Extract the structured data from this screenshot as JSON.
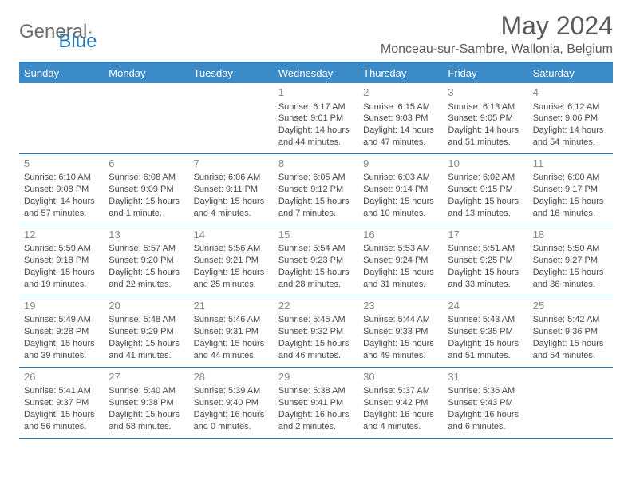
{
  "logo": {
    "text1": "General",
    "text2": "Blue"
  },
  "title": "May 2024",
  "location": "Monceau-sur-Sambre, Wallonia, Belgium",
  "colors": {
    "accent": "#2a7ab8",
    "header_bg": "#3b8bc9",
    "header_text": "#ffffff",
    "body_text": "#4a4a4a",
    "muted": "#888888"
  },
  "day_names": [
    "Sunday",
    "Monday",
    "Tuesday",
    "Wednesday",
    "Thursday",
    "Friday",
    "Saturday"
  ],
  "weeks": [
    [
      {
        "num": "",
        "sunrise": "",
        "sunset": "",
        "daylight": ""
      },
      {
        "num": "",
        "sunrise": "",
        "sunset": "",
        "daylight": ""
      },
      {
        "num": "",
        "sunrise": "",
        "sunset": "",
        "daylight": ""
      },
      {
        "num": "1",
        "sunrise": "Sunrise: 6:17 AM",
        "sunset": "Sunset: 9:01 PM",
        "daylight": "Daylight: 14 hours and 44 minutes."
      },
      {
        "num": "2",
        "sunrise": "Sunrise: 6:15 AM",
        "sunset": "Sunset: 9:03 PM",
        "daylight": "Daylight: 14 hours and 47 minutes."
      },
      {
        "num": "3",
        "sunrise": "Sunrise: 6:13 AM",
        "sunset": "Sunset: 9:05 PM",
        "daylight": "Daylight: 14 hours and 51 minutes."
      },
      {
        "num": "4",
        "sunrise": "Sunrise: 6:12 AM",
        "sunset": "Sunset: 9:06 PM",
        "daylight": "Daylight: 14 hours and 54 minutes."
      }
    ],
    [
      {
        "num": "5",
        "sunrise": "Sunrise: 6:10 AM",
        "sunset": "Sunset: 9:08 PM",
        "daylight": "Daylight: 14 hours and 57 minutes."
      },
      {
        "num": "6",
        "sunrise": "Sunrise: 6:08 AM",
        "sunset": "Sunset: 9:09 PM",
        "daylight": "Daylight: 15 hours and 1 minute."
      },
      {
        "num": "7",
        "sunrise": "Sunrise: 6:06 AM",
        "sunset": "Sunset: 9:11 PM",
        "daylight": "Daylight: 15 hours and 4 minutes."
      },
      {
        "num": "8",
        "sunrise": "Sunrise: 6:05 AM",
        "sunset": "Sunset: 9:12 PM",
        "daylight": "Daylight: 15 hours and 7 minutes."
      },
      {
        "num": "9",
        "sunrise": "Sunrise: 6:03 AM",
        "sunset": "Sunset: 9:14 PM",
        "daylight": "Daylight: 15 hours and 10 minutes."
      },
      {
        "num": "10",
        "sunrise": "Sunrise: 6:02 AM",
        "sunset": "Sunset: 9:15 PM",
        "daylight": "Daylight: 15 hours and 13 minutes."
      },
      {
        "num": "11",
        "sunrise": "Sunrise: 6:00 AM",
        "sunset": "Sunset: 9:17 PM",
        "daylight": "Daylight: 15 hours and 16 minutes."
      }
    ],
    [
      {
        "num": "12",
        "sunrise": "Sunrise: 5:59 AM",
        "sunset": "Sunset: 9:18 PM",
        "daylight": "Daylight: 15 hours and 19 minutes."
      },
      {
        "num": "13",
        "sunrise": "Sunrise: 5:57 AM",
        "sunset": "Sunset: 9:20 PM",
        "daylight": "Daylight: 15 hours and 22 minutes."
      },
      {
        "num": "14",
        "sunrise": "Sunrise: 5:56 AM",
        "sunset": "Sunset: 9:21 PM",
        "daylight": "Daylight: 15 hours and 25 minutes."
      },
      {
        "num": "15",
        "sunrise": "Sunrise: 5:54 AM",
        "sunset": "Sunset: 9:23 PM",
        "daylight": "Daylight: 15 hours and 28 minutes."
      },
      {
        "num": "16",
        "sunrise": "Sunrise: 5:53 AM",
        "sunset": "Sunset: 9:24 PM",
        "daylight": "Daylight: 15 hours and 31 minutes."
      },
      {
        "num": "17",
        "sunrise": "Sunrise: 5:51 AM",
        "sunset": "Sunset: 9:25 PM",
        "daylight": "Daylight: 15 hours and 33 minutes."
      },
      {
        "num": "18",
        "sunrise": "Sunrise: 5:50 AM",
        "sunset": "Sunset: 9:27 PM",
        "daylight": "Daylight: 15 hours and 36 minutes."
      }
    ],
    [
      {
        "num": "19",
        "sunrise": "Sunrise: 5:49 AM",
        "sunset": "Sunset: 9:28 PM",
        "daylight": "Daylight: 15 hours and 39 minutes."
      },
      {
        "num": "20",
        "sunrise": "Sunrise: 5:48 AM",
        "sunset": "Sunset: 9:29 PM",
        "daylight": "Daylight: 15 hours and 41 minutes."
      },
      {
        "num": "21",
        "sunrise": "Sunrise: 5:46 AM",
        "sunset": "Sunset: 9:31 PM",
        "daylight": "Daylight: 15 hours and 44 minutes."
      },
      {
        "num": "22",
        "sunrise": "Sunrise: 5:45 AM",
        "sunset": "Sunset: 9:32 PM",
        "daylight": "Daylight: 15 hours and 46 minutes."
      },
      {
        "num": "23",
        "sunrise": "Sunrise: 5:44 AM",
        "sunset": "Sunset: 9:33 PM",
        "daylight": "Daylight: 15 hours and 49 minutes."
      },
      {
        "num": "24",
        "sunrise": "Sunrise: 5:43 AM",
        "sunset": "Sunset: 9:35 PM",
        "daylight": "Daylight: 15 hours and 51 minutes."
      },
      {
        "num": "25",
        "sunrise": "Sunrise: 5:42 AM",
        "sunset": "Sunset: 9:36 PM",
        "daylight": "Daylight: 15 hours and 54 minutes."
      }
    ],
    [
      {
        "num": "26",
        "sunrise": "Sunrise: 5:41 AM",
        "sunset": "Sunset: 9:37 PM",
        "daylight": "Daylight: 15 hours and 56 minutes."
      },
      {
        "num": "27",
        "sunrise": "Sunrise: 5:40 AM",
        "sunset": "Sunset: 9:38 PM",
        "daylight": "Daylight: 15 hours and 58 minutes."
      },
      {
        "num": "28",
        "sunrise": "Sunrise: 5:39 AM",
        "sunset": "Sunset: 9:40 PM",
        "daylight": "Daylight: 16 hours and 0 minutes."
      },
      {
        "num": "29",
        "sunrise": "Sunrise: 5:38 AM",
        "sunset": "Sunset: 9:41 PM",
        "daylight": "Daylight: 16 hours and 2 minutes."
      },
      {
        "num": "30",
        "sunrise": "Sunrise: 5:37 AM",
        "sunset": "Sunset: 9:42 PM",
        "daylight": "Daylight: 16 hours and 4 minutes."
      },
      {
        "num": "31",
        "sunrise": "Sunrise: 5:36 AM",
        "sunset": "Sunset: 9:43 PM",
        "daylight": "Daylight: 16 hours and 6 minutes."
      },
      {
        "num": "",
        "sunrise": "",
        "sunset": "",
        "daylight": ""
      }
    ]
  ]
}
